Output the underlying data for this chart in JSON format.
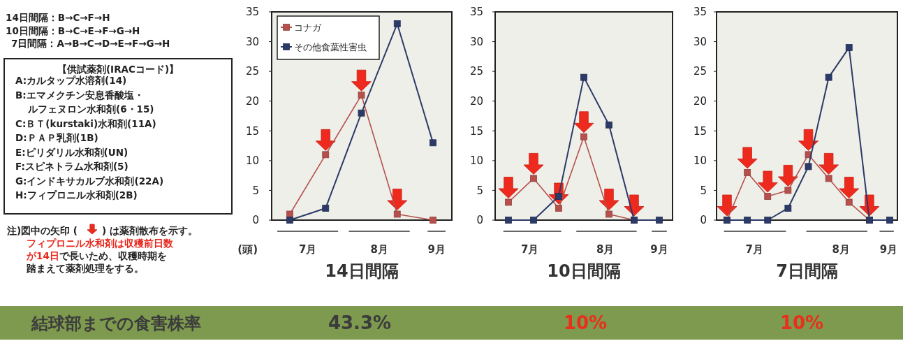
{
  "chart_data": [
    {
      "type": "other",
      "annotations": [
        "14日間隔：B→C→F→H",
        "10日間隔：B→C→E→F→G→H",
        "7日間隔：A→B→C→D→E→F→G→H",
        "【供試薬剤(IRACコード)】",
        "A:カルタップ水溶剤(14)",
        "B:エマメクチン安息香酸塩・",
        "ルフェヌロン水和剤(6・15)",
        "C:ＢＴ(kurstaki)水和剤(11A)",
        "D:ＰＡＰ乳剤(1B)",
        "E:ピリダリル水和剤(UN)",
        "F:スピネトラム水和剤(5)",
        "G:インドキサカルブ水和剤(22A)",
        "H:フィプロニル水和剤(2B)",
        "注)図中の矢印 (",
        ") は薬剤散布を示す。",
        "フィプロニル水和剤は収穫前日数",
        "が14日",
        "で長いため、収穫時期を",
        "踏まえて薬剤処理をする。"
      ]
    },
    {
      "type": "line",
      "title": "14日間隔",
      "ylabel": "(頭)",
      "categories": [
        null,
        null,
        null,
        null,
        null
      ],
      "ylim": [
        0,
        35
      ],
      "yticks": [
        0,
        5,
        10,
        15,
        20,
        25,
        30,
        35
      ],
      "tick_labels": "y",
      "marker": "square",
      "legend": "top left",
      "annotations": [
        "7月",
        "8月",
        "9月"
      ],
      "series": [
        {
          "name": "コナガ",
          "color": "#b5504c",
          "values": [
            1,
            11,
            21,
            1,
            0
          ]
        },
        {
          "name": "その他食葉性害虫",
          "color": "#2b3a67",
          "values": [
            0,
            2,
            18,
            33,
            13
          ]
        }
      ]
    },
    {
      "type": "line",
      "title": "10日間隔",
      "categories": [
        null,
        null,
        null,
        null,
        null,
        null,
        null
      ],
      "ylim": [
        0,
        35
      ],
      "yticks": [
        0,
        5,
        10,
        15,
        20,
        25,
        30,
        35
      ],
      "tick_labels": "y",
      "marker": "square",
      "annotations": [
        "7月",
        "8月",
        "9月"
      ],
      "series": [
        {
          "color": "#b5504c",
          "values": [
            3,
            7,
            2,
            14,
            1,
            0,
            null
          ]
        },
        {
          "color": "#2b3a67",
          "values": [
            0,
            0,
            4,
            24,
            16,
            0,
            0
          ]
        }
      ]
    },
    {
      "type": "line",
      "title": "7日間隔",
      "categories": [
        null,
        null,
        null,
        null,
        null,
        null,
        null,
        null,
        null
      ],
      "ylim": [
        0,
        35
      ],
      "yticks": [
        0,
        5,
        10,
        15,
        20,
        25,
        30,
        35
      ],
      "tick_labels": "y",
      "marker": "square",
      "annotations": [
        "7月",
        "8月",
        "9月"
      ],
      "series": [
        {
          "color": "#b5504c",
          "values": [
            0,
            8,
            4,
            5,
            11,
            7,
            3,
            0,
            null
          ]
        },
        {
          "color": "#2b3a67",
          "values": [
            0,
            0,
            0,
            2,
            9,
            24,
            29,
            0,
            0
          ]
        }
      ]
    },
    {
      "type": "other",
      "title": "結球部までの食害株率",
      "annotations": [
        "43.3%",
        "10%",
        "10%"
      ]
    }
  ]
}
